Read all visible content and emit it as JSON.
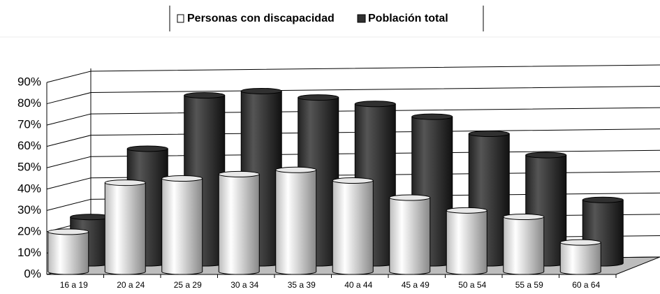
{
  "chart_data": {
    "type": "bar3d",
    "categories": [
      "16 a 19",
      "20 a 24",
      "25 a 29",
      "30 a 34",
      "35 a 39",
      "40 a 44",
      "45 a 49",
      "50 a 54",
      "55 a 59",
      "60 a 64"
    ],
    "series": [
      {
        "name": "Personas con discapacidad",
        "color": "#e8e8e8",
        "values": [
          20,
          43,
          45,
          47,
          49,
          44,
          36,
          30,
          27,
          15
        ]
      },
      {
        "name": "Población total",
        "color": "#303030",
        "values": [
          23,
          55,
          80,
          82,
          79,
          76,
          70,
          62,
          52,
          31
        ]
      }
    ],
    "ylim": [
      0,
      90
    ],
    "yticks": [
      {
        "value": 0,
        "label": "0%"
      },
      {
        "value": 10,
        "label": "10%"
      },
      {
        "value": 20,
        "label": "20%"
      },
      {
        "value": 30,
        "label": "30%"
      },
      {
        "value": 40,
        "label": "40%"
      },
      {
        "value": 50,
        "label": "50%"
      },
      {
        "value": 60,
        "label": "60%"
      },
      {
        "value": 70,
        "label": "70%"
      },
      {
        "value": 80,
        "label": "80%"
      },
      {
        "value": 90,
        "label": "90%"
      }
    ],
    "grid": true
  }
}
